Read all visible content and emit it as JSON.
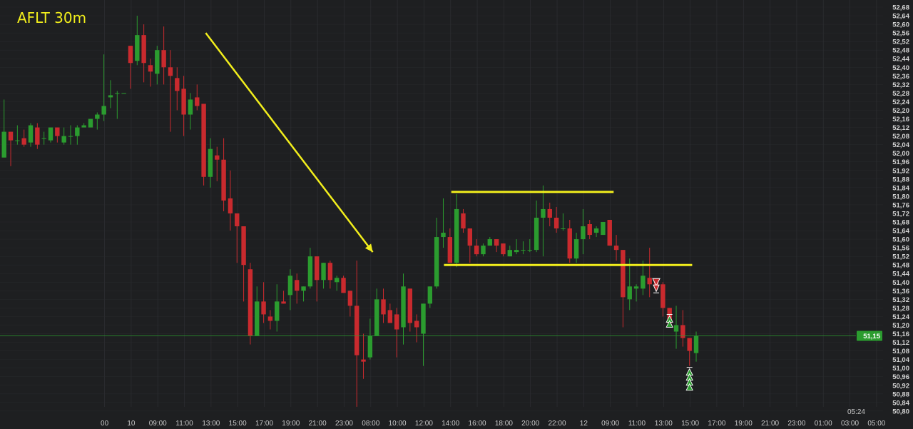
{
  "header": {
    "title": "AFLT 30m"
  },
  "colors": {
    "background": "#1e1f21",
    "up": "#2b9c2f",
    "down": "#c92a2e",
    "annotation": "#f2ee1c",
    "grid": "#2a2b2e",
    "last_price": "#2b9c2f"
  },
  "chart_data": {
    "type": "candlestick",
    "title": "AFLT 30m",
    "interval": "30m",
    "ylim": [
      50.8,
      52.68
    ],
    "y_ticks": [
      "52,68",
      "52,64",
      "52,60",
      "52,56",
      "52,52",
      "52,48",
      "52,44",
      "52,40",
      "52,36",
      "52,32",
      "52,28",
      "52,24",
      "52,20",
      "52,16",
      "52,12",
      "52,08",
      "52,04",
      "52,00",
      "51,96",
      "51,92",
      "51,88",
      "51,84",
      "51,80",
      "51,76",
      "51,72",
      "51,68",
      "51,64",
      "51,60",
      "51,56",
      "51,52",
      "51,48",
      "51,44",
      "51,40",
      "51,36",
      "51,32",
      "51,28",
      "51,24",
      "51,20",
      "51,16",
      "51,12",
      "51,08",
      "51,04",
      "51,00",
      "50,96",
      "50,92",
      "50,88",
      "50,84",
      "50,80"
    ],
    "x_ticks": [
      "00",
      "10",
      "09:00",
      "11:00",
      "13:00",
      "15:00",
      "17:00",
      "19:00",
      "21:00",
      "23:00",
      "08:00",
      "10:00",
      "12:00",
      "14:00",
      "16:00",
      "18:00",
      "20:00",
      "22:00",
      "12",
      "09:00",
      "11:00",
      "13:00",
      "15:00",
      "17:00",
      "19:00",
      "21:00",
      "23:00",
      "01:00",
      "03:00",
      "05:00"
    ],
    "candle_fields": [
      "open",
      "high",
      "low",
      "close"
    ],
    "candles": [
      [
        51.98,
        52.25,
        51.98,
        52.1
      ],
      [
        52.1,
        52.1,
        51.94,
        52.06
      ],
      [
        52.06,
        52.13,
        52.04,
        52.06
      ],
      [
        52.07,
        52.11,
        52.03,
        52.04
      ],
      [
        52.05,
        52.14,
        52.03,
        52.13
      ],
      [
        52.12,
        52.14,
        52.02,
        52.04
      ],
      [
        52.07,
        52.1,
        52.04,
        52.07
      ],
      [
        52.06,
        52.12,
        52.05,
        52.12
      ],
      [
        52.12,
        52.12,
        52.05,
        52.08
      ],
      [
        52.05,
        52.12,
        52.04,
        52.08
      ],
      [
        52.08,
        52.13,
        52.04,
        52.08
      ],
      [
        52.08,
        52.13,
        52.04,
        52.12
      ],
      [
        52.12,
        52.14,
        52.12,
        52.13
      ],
      [
        52.12,
        52.16,
        52.12,
        52.16
      ],
      [
        52.16,
        52.19,
        52.11,
        52.18
      ],
      [
        52.18,
        52.46,
        52.15,
        52.22
      ],
      [
        52.26,
        52.34,
        52.21,
        52.27
      ],
      [
        52.28,
        52.29,
        52.16,
        52.28
      ],
      [
        52.28,
        52.28,
        52.28,
        52.28
      ],
      [
        52.5,
        52.5,
        52.3,
        52.42
      ],
      [
        52.43,
        52.64,
        52.41,
        52.55
      ],
      [
        52.55,
        52.6,
        52.33,
        52.42
      ],
      [
        52.41,
        52.44,
        52.31,
        52.38
      ],
      [
        52.37,
        52.5,
        52.32,
        52.48
      ],
      [
        52.48,
        52.59,
        52.32,
        52.4
      ],
      [
        52.4,
        52.48,
        52.1,
        52.36
      ],
      [
        52.35,
        52.4,
        52.2,
        52.29
      ],
      [
        52.3,
        52.36,
        52.08,
        52.18
      ],
      [
        52.18,
        52.28,
        52.11,
        52.25
      ],
      [
        52.26,
        52.32,
        52.2,
        52.22
      ],
      [
        52.23,
        52.23,
        51.85,
        51.89
      ],
      [
        51.89,
        52.07,
        51.84,
        52.02
      ],
      [
        51.99,
        52.03,
        51.87,
        51.97
      ],
      [
        51.97,
        52.07,
        51.73,
        51.78
      ],
      [
        51.79,
        51.92,
        51.64,
        51.72
      ],
      [
        51.72,
        51.72,
        51.49,
        51.66
      ],
      [
        51.66,
        51.66,
        51.31,
        51.48
      ],
      [
        51.46,
        51.49,
        51.11,
        51.15
      ],
      [
        51.15,
        51.38,
        51.15,
        51.31
      ],
      [
        51.31,
        51.4,
        51.21,
        51.25
      ],
      [
        51.24,
        51.27,
        51.18,
        51.22
      ],
      [
        51.22,
        51.39,
        51.17,
        51.31
      ],
      [
        51.31,
        51.36,
        51.3,
        51.3
      ],
      [
        51.34,
        51.46,
        51.27,
        51.43
      ],
      [
        51.41,
        51.44,
        51.3,
        51.36
      ],
      [
        51.36,
        51.38,
        51.31,
        51.38
      ],
      [
        51.38,
        51.56,
        51.37,
        51.52
      ],
      [
        51.52,
        51.52,
        51.31,
        51.41
      ],
      [
        51.41,
        51.49,
        51.37,
        51.49
      ],
      [
        51.49,
        51.5,
        51.37,
        51.41
      ],
      [
        51.4,
        51.43,
        51.36,
        51.42
      ],
      [
        51.42,
        51.43,
        51.35,
        51.35
      ],
      [
        51.36,
        51.36,
        51.24,
        51.29
      ],
      [
        51.29,
        51.5,
        50.82,
        51.06
      ],
      [
        51.04,
        51.16,
        50.95,
        51.03
      ],
      [
        51.05,
        51.23,
        51.04,
        51.15
      ],
      [
        51.15,
        51.37,
        51.15,
        51.32
      ],
      [
        51.32,
        51.37,
        51.21,
        51.25
      ],
      [
        51.27,
        51.3,
        51.21,
        51.21
      ],
      [
        51.25,
        51.28,
        51.05,
        51.18
      ],
      [
        51.19,
        51.44,
        51.11,
        51.38
      ],
      [
        51.37,
        51.37,
        51.17,
        51.21
      ],
      [
        51.22,
        51.25,
        51.12,
        51.19
      ],
      [
        51.16,
        51.3,
        51.01,
        51.3
      ],
      [
        51.3,
        51.38,
        51.28,
        51.38
      ],
      [
        51.38,
        51.7,
        51.37,
        51.61
      ],
      [
        51.61,
        51.79,
        51.56,
        51.63
      ],
      [
        51.61,
        51.65,
        51.49,
        51.49
      ],
      [
        51.49,
        51.81,
        51.47,
        51.74
      ],
      [
        51.72,
        51.74,
        51.63,
        51.65
      ],
      [
        51.65,
        51.65,
        51.49,
        51.57
      ],
      [
        51.57,
        51.6,
        51.52,
        51.53
      ],
      [
        51.53,
        51.58,
        51.52,
        51.57
      ],
      [
        51.57,
        51.61,
        51.57,
        51.6
      ],
      [
        51.6,
        51.6,
        51.54,
        51.57
      ],
      [
        51.58,
        51.58,
        51.52,
        51.53
      ],
      [
        51.52,
        51.57,
        51.52,
        51.55
      ],
      [
        51.54,
        51.6,
        51.53,
        51.55
      ],
      [
        51.55,
        51.59,
        51.53,
        51.55
      ],
      [
        51.55,
        51.6,
        51.54,
        51.55
      ],
      [
        51.55,
        51.78,
        51.54,
        51.7
      ],
      [
        51.7,
        51.85,
        51.52,
        51.74
      ],
      [
        51.74,
        51.77,
        51.66,
        51.7
      ],
      [
        51.7,
        51.75,
        51.63,
        51.65
      ],
      [
        51.65,
        51.72,
        51.64,
        51.65
      ],
      [
        51.65,
        51.69,
        51.49,
        51.51
      ],
      [
        51.51,
        51.63,
        51.49,
        51.6
      ],
      [
        51.6,
        51.74,
        51.53,
        51.66
      ],
      [
        51.67,
        51.69,
        51.6,
        51.62
      ],
      [
        51.63,
        51.66,
        51.61,
        51.65
      ],
      [
        51.62,
        51.68,
        51.62,
        51.68
      ],
      [
        51.69,
        51.69,
        51.57,
        51.57
      ],
      [
        51.57,
        51.62,
        51.5,
        51.55
      ],
      [
        51.55,
        51.55,
        51.19,
        51.33
      ],
      [
        51.32,
        51.51,
        51.27,
        51.38
      ],
      [
        51.37,
        51.39,
        51.31,
        51.38
      ],
      [
        51.37,
        51.5,
        51.34,
        51.43
      ],
      [
        51.42,
        51.56,
        51.33,
        51.39
      ],
      [
        51.4,
        51.41,
        51.36,
        51.38
      ],
      [
        51.39,
        51.4,
        51.24,
        51.28
      ],
      [
        51.28,
        51.28,
        51.2,
        51.21
      ],
      [
        51.17,
        51.29,
        51.09,
        51.2
      ],
      [
        51.2,
        51.27,
        51.1,
        51.14
      ],
      [
        51.14,
        51.14,
        51.01,
        51.08
      ],
      [
        51.07,
        51.17,
        51.03,
        51.15
      ]
    ],
    "signals": [
      {
        "index": 98,
        "type": "sell"
      },
      {
        "index": 100,
        "type": "buy"
      },
      {
        "index": 103,
        "type": "buy-stack"
      }
    ],
    "annotations": [
      {
        "type": "arrow",
        "from": {
          "index": 30.3,
          "price": 52.56
        },
        "to": {
          "index": 55.4,
          "price": 51.54
        }
      },
      {
        "type": "hline",
        "from_index": 67.2,
        "to_index": 91.6,
        "price": 51.82
      },
      {
        "type": "hline",
        "from_index": 66.1,
        "to_index": 103.4,
        "price": 51.48
      }
    ],
    "last_price": 51.15,
    "last_price_label": "51,15",
    "countdown": "05:24",
    "grid": true
  }
}
